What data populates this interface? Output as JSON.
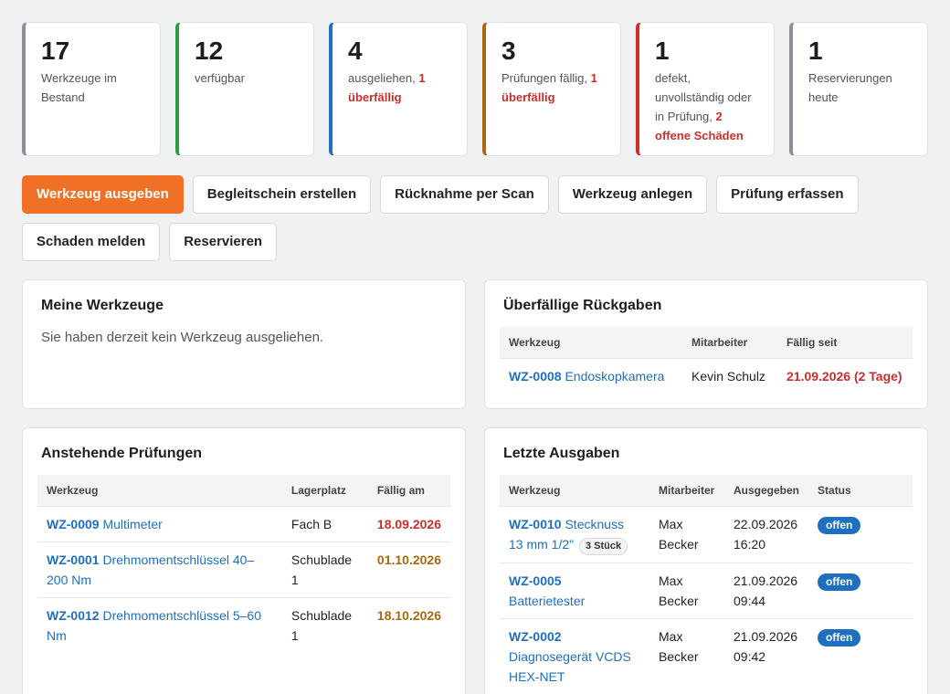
{
  "stats": [
    {
      "value": "17",
      "text": "Werkzeuge im Bestand",
      "warn": ""
    },
    {
      "value": "12",
      "text": "verfügbar",
      "warn": ""
    },
    {
      "value": "4",
      "text": "ausgeliehen, ",
      "warn": "1 überfällig"
    },
    {
      "value": "3",
      "text": "Prüfungen fällig, ",
      "warn": "1 überfällig"
    },
    {
      "value": "1",
      "text": "defekt, unvollständig oder in Prüfung, ",
      "warn": "2 offene Schäden"
    },
    {
      "value": "1",
      "text": "Reservierungen heute",
      "warn": ""
    }
  ],
  "actions": {
    "issue": "Werkzeug ausgeben",
    "delivery_note": "Begleitschein erstellen",
    "return_scan": "Rücknahme per Scan",
    "add_tool": "Werkzeug anlegen",
    "record_inspection": "Prüfung erfassen",
    "report_damage": "Schaden melden",
    "reserve": "Reservieren"
  },
  "my_tools": {
    "title": "Meine Werkzeuge",
    "empty": "Sie haben derzeit kein Werkzeug ausgeliehen."
  },
  "overdue": {
    "title": "Überfällige Rückgaben",
    "headers": {
      "tool": "Werkzeug",
      "employee": "Mitarbeiter",
      "due_since": "Fällig seit"
    },
    "rows": [
      {
        "code": "WZ-0008",
        "name": "Endoskopkamera",
        "employee": "Kevin Schulz",
        "due": "21.09.2026 (2 Tage)"
      }
    ]
  },
  "inspections": {
    "title": "Anstehende Prüfungen",
    "headers": {
      "tool": "Werkzeug",
      "location": "Lagerplatz",
      "due": "Fällig am"
    },
    "rows": [
      {
        "code": "WZ-0009",
        "name": "Multimeter",
        "location": "Fach B",
        "due": "18.09.2026"
      },
      {
        "code": "WZ-0001",
        "name": "Drehmomentschlüssel 40–200 Nm",
        "location": "Schublade 1",
        "due": "01.10.2026"
      },
      {
        "code": "WZ-0012",
        "name": "Drehmomentschlüssel 5–60 Nm",
        "location": "Schublade 1",
        "due": "18.10.2026"
      }
    ]
  },
  "recent": {
    "title": "Letzte Ausgaben",
    "headers": {
      "tool": "Werkzeug",
      "employee": "Mitarbeiter",
      "issued": "Ausgegeben",
      "status": "Status"
    },
    "rows": [
      {
        "code": "WZ-0010",
        "name": "Stecknuss 13 mm 1/2\"",
        "qty": "3 Stück",
        "employee": "Max Becker",
        "date": "22.09.2026",
        "time": "16:20",
        "status": "offen"
      },
      {
        "code": "WZ-0005",
        "name": "Batterietester",
        "qty": "",
        "employee": "Max Becker",
        "date": "21.09.2026",
        "time": "09:44",
        "status": "offen"
      },
      {
        "code": "WZ-0002",
        "name": "Diagnosegerät VCDS HEX-NET",
        "qty": "",
        "employee": "Max Becker",
        "date": "21.09.2026",
        "time": "09:42",
        "status": "offen"
      }
    ]
  },
  "colors": {
    "accent": "#f07025",
    "link": "#1f6fbf",
    "danger": "#c9302c",
    "warning": "#a8680f",
    "success": "#2f9a46"
  }
}
